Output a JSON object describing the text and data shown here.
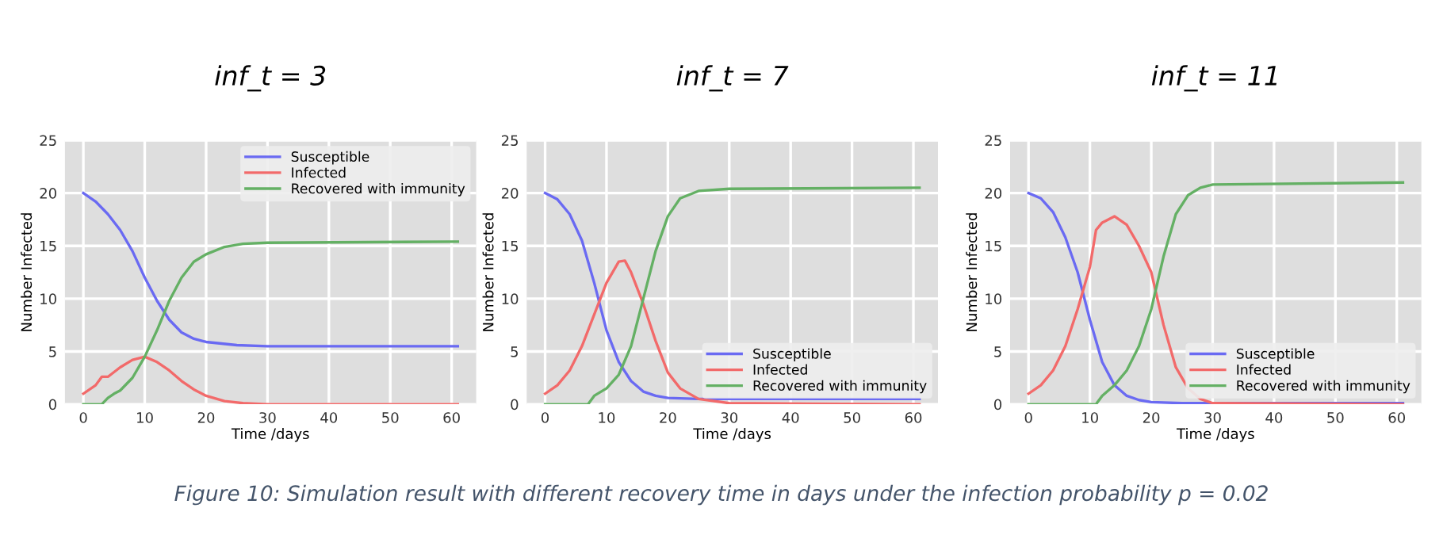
{
  "chart_data": [
    {
      "type": "line",
      "title": "inf_t = 3",
      "xlabel": "Time /days",
      "ylabel": "Number Infected",
      "xlim": [
        -3,
        64
      ],
      "ylim": [
        0,
        25
      ],
      "xticks": [
        0,
        10,
        20,
        30,
        40,
        50,
        60
      ],
      "yticks": [
        0,
        5,
        10,
        15,
        20,
        25
      ],
      "grid": true,
      "legend": "top right",
      "line_style": "solid",
      "annotations": [
        "Figure 10: Simulation result with different recovery time in days under the infection probability p = 0.02"
      ],
      "series": [
        {
          "name": "Susceptible",
          "color": "#6a6af2",
          "x": [
            0,
            2,
            4,
            6,
            8,
            10,
            12,
            14,
            16,
            18,
            20,
            25,
            30,
            61
          ],
          "values": [
            20,
            19.2,
            18,
            16.5,
            14.5,
            12,
            9.8,
            8,
            6.8,
            6.2,
            5.9,
            5.6,
            5.5,
            5.5
          ]
        },
        {
          "name": "Infected",
          "color": "#f26a6a",
          "x": [
            0,
            2,
            3,
            4,
            6,
            8,
            10,
            12,
            14,
            16,
            18,
            20,
            23,
            26,
            30,
            61
          ],
          "values": [
            1,
            1.8,
            2.6,
            2.6,
            3.5,
            4.2,
            4.5,
            4.0,
            3.2,
            2.2,
            1.4,
            0.8,
            0.3,
            0.1,
            0,
            0
          ]
        },
        {
          "name": "Recovered with immunity",
          "color": "#64b064",
          "x": [
            0,
            3,
            4,
            5,
            6,
            8,
            10,
            12,
            14,
            16,
            18,
            20,
            23,
            26,
            30,
            61
          ],
          "values": [
            0,
            0,
            0.6,
            1.0,
            1.3,
            2.5,
            4.5,
            7.0,
            9.8,
            12,
            13.5,
            14.2,
            14.9,
            15.2,
            15.3,
            15.4
          ]
        }
      ]
    },
    {
      "type": "line",
      "title": "inf_t = 7",
      "xlabel": "Time /days",
      "ylabel": "Number Infected",
      "xlim": [
        -3,
        64
      ],
      "ylim": [
        0,
        25
      ],
      "xticks": [
        0,
        10,
        20,
        30,
        40,
        50,
        60
      ],
      "yticks": [
        0,
        5,
        10,
        15,
        20,
        25
      ],
      "grid": true,
      "legend": "bottom right",
      "line_style": "solid",
      "series": [
        {
          "name": "Susceptible",
          "color": "#6a6af2",
          "x": [
            0,
            2,
            4,
            6,
            8,
            10,
            12,
            14,
            16,
            18,
            20,
            25,
            30,
            61
          ],
          "values": [
            20,
            19.4,
            18,
            15.5,
            11.5,
            7,
            4,
            2.2,
            1.2,
            0.8,
            0.6,
            0.5,
            0.5,
            0.5
          ]
        },
        {
          "name": "Infected",
          "color": "#f26a6a",
          "x": [
            0,
            2,
            4,
            6,
            8,
            10,
            12,
            13,
            14,
            16,
            18,
            20,
            22,
            25,
            30,
            61
          ],
          "values": [
            1,
            1.8,
            3.2,
            5.5,
            8.5,
            11.5,
            13.5,
            13.6,
            12.5,
            9.5,
            6,
            3,
            1.5,
            0.5,
            0.1,
            0
          ]
        },
        {
          "name": "Recovered with immunity",
          "color": "#64b064",
          "x": [
            0,
            7,
            8,
            10,
            12,
            14,
            16,
            18,
            20,
            22,
            25,
            30,
            61
          ],
          "values": [
            0,
            0,
            0.8,
            1.5,
            2.8,
            5.5,
            10,
            14.5,
            17.8,
            19.5,
            20.2,
            20.4,
            20.5
          ]
        }
      ]
    },
    {
      "type": "line",
      "title": "inf_t = 11",
      "xlabel": "Time /days",
      "ylabel": "Number Infected",
      "xlim": [
        -3,
        64
      ],
      "ylim": [
        0,
        25
      ],
      "xticks": [
        0,
        10,
        20,
        30,
        40,
        50,
        60
      ],
      "yticks": [
        0,
        5,
        10,
        15,
        20,
        25
      ],
      "grid": true,
      "legend": "bottom right",
      "line_style": "solid",
      "series": [
        {
          "name": "Susceptible",
          "color": "#6a6af2",
          "x": [
            0,
            2,
            4,
            6,
            8,
            10,
            12,
            14,
            16,
            18,
            20,
            25,
            61
          ],
          "values": [
            20,
            19.5,
            18.2,
            15.8,
            12.5,
            8,
            4,
            1.8,
            0.8,
            0.4,
            0.2,
            0.1,
            0.1
          ]
        },
        {
          "name": "Infected",
          "color": "#f26a6a",
          "x": [
            0,
            2,
            4,
            6,
            8,
            10,
            11,
            12,
            14,
            16,
            18,
            20,
            22,
            24,
            26,
            28,
            30,
            61
          ],
          "values": [
            1,
            1.8,
            3.2,
            5.5,
            9,
            13,
            16.5,
            17.2,
            17.8,
            17,
            15,
            12.5,
            7.5,
            3.5,
            1.5,
            0.5,
            0.1,
            0
          ]
        },
        {
          "name": "Recovered with immunity",
          "color": "#64b064",
          "x": [
            0,
            11,
            12,
            14,
            16,
            18,
            20,
            22,
            24,
            26,
            28,
            30,
            61
          ],
          "values": [
            0,
            0,
            0.8,
            1.8,
            3.2,
            5.5,
            9,
            14,
            18,
            19.8,
            20.5,
            20.8,
            21
          ]
        }
      ]
    }
  ]
}
